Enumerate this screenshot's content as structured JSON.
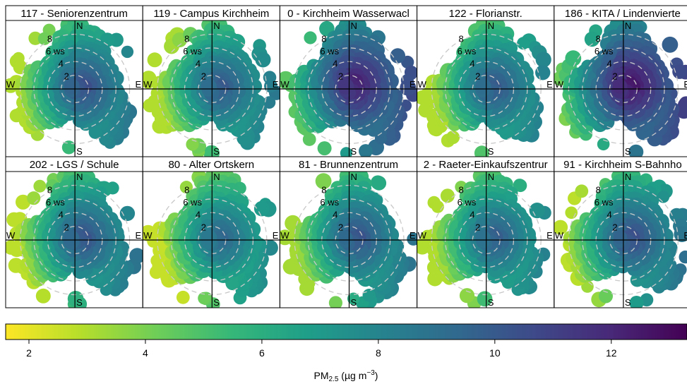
{
  "chart_data": {
    "type": "heatmap",
    "subtype": "polar-plot",
    "ncol": 5,
    "nrow": 2,
    "panels": [
      {
        "title": "117 - Seniorenzentrum",
        "hot_angle_deg": 80,
        "hot_value": 10.6,
        "cold_value": 3.0
      },
      {
        "title": "119 - Campus Kirchheim",
        "hot_angle_deg": 80,
        "hot_value": 10.2,
        "cold_value": 3.0
      },
      {
        "title": "0 - Kirchheim Wasserwacl",
        "hot_angle_deg": 55,
        "hot_value": 12.4,
        "cold_value": 4.6
      },
      {
        "title": "122 - Florianstr.",
        "hot_angle_deg": 80,
        "hot_value": 10.2,
        "cold_value": 3.0
      },
      {
        "title": "186 - KITA / Lindenvierte",
        "hot_angle_deg": 60,
        "hot_value": 12.8,
        "cold_value": 2.6
      },
      {
        "title": "202 - LGS / Schule",
        "hot_angle_deg": 80,
        "hot_value": 10.4,
        "cold_value": 2.8
      },
      {
        "title": "80 - Alter Ortskern",
        "hot_angle_deg": 80,
        "hot_value": 9.6,
        "cold_value": 2.6
      },
      {
        "title": "81 - Brunnenzentrum",
        "hot_angle_deg": 75,
        "hot_value": 10.4,
        "cold_value": 3.2
      },
      {
        "title": "2 - Raeter-Einkaufszentrur",
        "hot_angle_deg": 80,
        "hot_value": 10.0,
        "cold_value": 3.0
      },
      {
        "title": "91 - Kirchheim S-Bahnho",
        "hot_angle_deg": 80,
        "hot_value": 10.6,
        "cold_value": 2.8
      }
    ],
    "compass_labels": {
      "n": "N",
      "e": "E",
      "s": "S",
      "w": "W"
    },
    "ring_labels": [
      "2",
      "4",
      "6 ws",
      "8"
    ],
    "ring_values": [
      2,
      4,
      6,
      8
    ],
    "ws_max": 9.5,
    "colorbar": {
      "min": 1.6,
      "max": 13.3,
      "ticks": [
        2,
        4,
        6,
        8,
        10,
        12
      ],
      "palette": [
        "#fde725",
        "#b5de2b",
        "#6ece58",
        "#35b779",
        "#1f9e89",
        "#26828e",
        "#31688e",
        "#3e4989",
        "#482878",
        "#440154"
      ]
    },
    "xlabel": {
      "main": "PM",
      "sub": "2.5",
      "unit_pre": " (µg m",
      "sup": "−3",
      "unit_post": ")"
    }
  }
}
